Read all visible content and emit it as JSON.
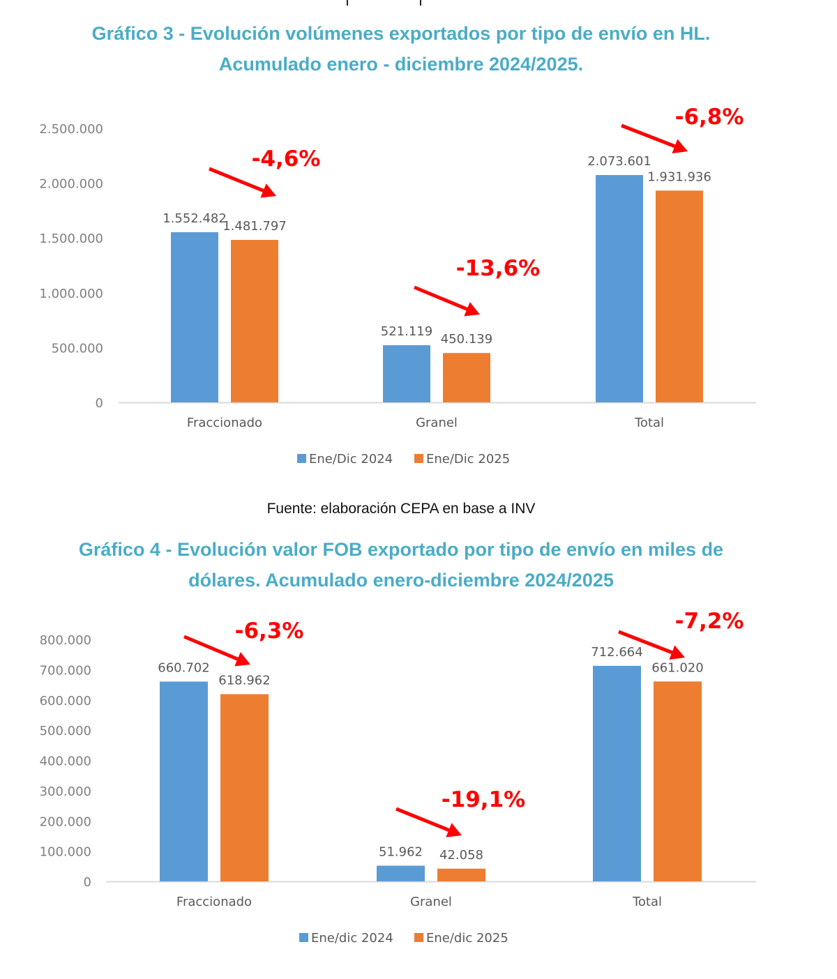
{
  "page": {
    "source_text": "Fuente: elaboración CEPA en base a INV"
  },
  "chart_data": [
    {
      "type": "bar",
      "title_line1": "Gráfico 3 - Evolución volúmenes exportados por tipo de envío en HL.",
      "title_line2": "Acumulado enero - diciembre 2024/2025.",
      "categories": [
        "Fraccionado",
        "Granel",
        "Total"
      ],
      "series": [
        {
          "name": "Ene/Dic 2024",
          "color": "#5b9bd5",
          "values": [
            1552482,
            521119,
            2073601
          ],
          "labels": [
            "1.552.482",
            "521.119",
            "2.073.601"
          ]
        },
        {
          "name": "Ene/Dic 2025",
          "color": "#ed7d31",
          "values": [
            1481797,
            450139,
            1931936
          ],
          "labels": [
            "1.481.797",
            "450.139",
            "1.931.936"
          ]
        }
      ],
      "annotations": [
        "-4,6%",
        "-13,6%",
        "-6,8%"
      ],
      "annotation_color": "#ff0000",
      "yticks": [
        0,
        500000,
        1000000,
        1500000,
        2000000,
        2500000
      ],
      "ytick_labels": [
        "0",
        "500.000",
        "1.000.000",
        "1.500.000",
        "2.000.000",
        "2.500.000"
      ],
      "ylim": [
        0,
        2500000
      ],
      "xlabel": "",
      "ylabel": "",
      "grid": false,
      "legend": "bottom"
    },
    {
      "type": "bar",
      "title_line1": "Gráfico 4 - Evolución valor FOB exportado por tipo de envío en miles de",
      "title_line2": "dólares. Acumulado enero-diciembre 2024/2025",
      "categories": [
        "Fraccionado",
        "Granel",
        "Total"
      ],
      "series": [
        {
          "name": "Ene/dic 2024",
          "color": "#5b9bd5",
          "values": [
            660702,
            51962,
            712664
          ],
          "labels": [
            "660.702",
            "51.962",
            "712.664"
          ]
        },
        {
          "name": "Ene/dic 2025",
          "color": "#ed7d31",
          "values": [
            618962,
            42058,
            661020
          ],
          "labels": [
            "618.962",
            "42.058",
            "661.020"
          ]
        }
      ],
      "annotations": [
        "-6,3%",
        "-19,1%",
        "-7,2%"
      ],
      "annotation_color": "#ff0000",
      "yticks": [
        0,
        100000,
        200000,
        300000,
        400000,
        500000,
        600000,
        700000,
        800000
      ],
      "ytick_labels": [
        "0",
        "100.000",
        "200.000",
        "300.000",
        "400.000",
        "500.000",
        "600.000",
        "700.000",
        "800.000"
      ],
      "ylim": [
        0,
        800000
      ],
      "xlabel": "",
      "ylabel": "",
      "grid": false,
      "legend": "bottom"
    }
  ]
}
